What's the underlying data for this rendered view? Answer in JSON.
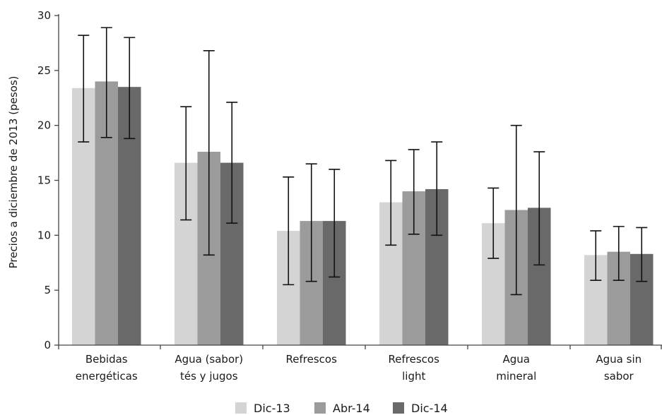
{
  "chart_data": {
    "type": "bar",
    "title": "",
    "xlabel": "",
    "ylabel": "Precios a diciembre de 2013 (pesos)",
    "ylim": [
      0,
      30
    ],
    "yticks": [
      0,
      5,
      10,
      15,
      20,
      25,
      30
    ],
    "grid": false,
    "legend_position": "bottom",
    "categories": [
      [
        "Bebidas",
        "energéticas"
      ],
      [
        "Agua (sabor)",
        "tés y jugos"
      ],
      [
        "Refrescos"
      ],
      [
        "Refrescos",
        "light"
      ],
      [
        "Agua",
        "mineral"
      ],
      [
        "Agua sin",
        "sabor"
      ]
    ],
    "series": [
      {
        "name": "Dic-13",
        "color": "#d4d4d4",
        "values": [
          23.4,
          16.6,
          10.4,
          13.0,
          11.1,
          8.2
        ],
        "err_low": [
          18.5,
          11.4,
          5.5,
          9.1,
          7.9,
          5.9
        ],
        "err_high": [
          28.2,
          21.7,
          15.3,
          16.8,
          14.3,
          10.4
        ]
      },
      {
        "name": "Abr-14",
        "color": "#9b9b9b",
        "values": [
          24.0,
          17.6,
          11.3,
          14.0,
          12.3,
          8.5
        ],
        "err_low": [
          18.9,
          8.2,
          5.8,
          10.1,
          4.6,
          5.9
        ],
        "err_high": [
          28.9,
          26.8,
          16.5,
          17.8,
          20.0,
          10.8
        ]
      },
      {
        "name": "Dic-14",
        "color": "#696969",
        "values": [
          23.5,
          16.6,
          11.3,
          14.2,
          12.5,
          8.3
        ],
        "err_low": [
          18.8,
          11.1,
          6.2,
          10.0,
          7.3,
          5.8
        ],
        "err_high": [
          28.0,
          22.1,
          16.0,
          18.5,
          17.6,
          10.7
        ]
      }
    ]
  }
}
